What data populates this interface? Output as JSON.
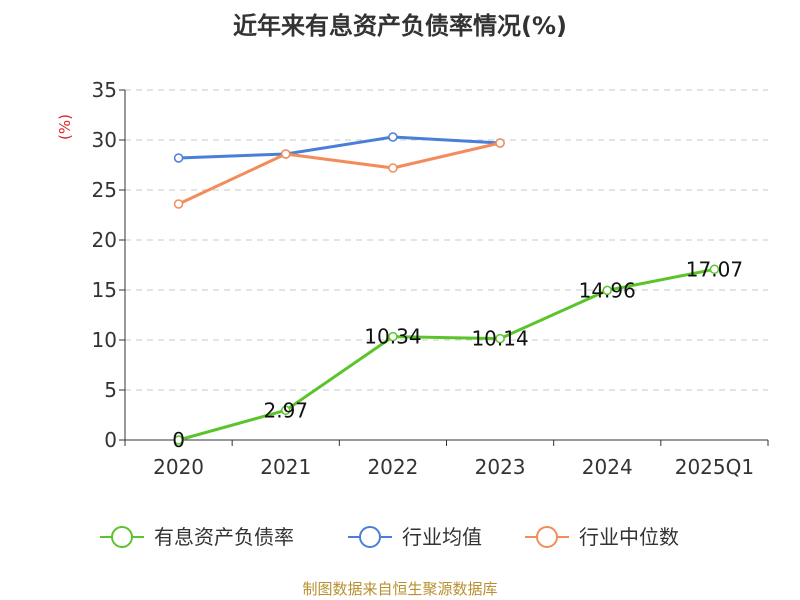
{
  "chart_data": {
    "type": "line",
    "title": "近年来有息资产负债率情况(%)",
    "ylabel": "(%)",
    "xlabel": "",
    "categories": [
      "2020",
      "2021",
      "2022",
      "2023",
      "2024",
      "2025Q1"
    ],
    "ylim": [
      0,
      35
    ],
    "yticks": [
      0,
      5,
      10,
      15,
      20,
      25,
      30,
      35
    ],
    "grid": true,
    "legend_position": "bottom",
    "series": [
      {
        "name": "有息资产负债率",
        "color": "#5cc42b",
        "values": [
          0,
          2.97,
          10.34,
          10.14,
          14.96,
          17.07
        ],
        "labels": [
          "0",
          "2.97",
          "10.34",
          "10.14",
          "14.96",
          "17.07"
        ]
      },
      {
        "name": "行业均值",
        "color": "#4a7fd9",
        "values": [
          28.2,
          28.6,
          30.3,
          29.7,
          null,
          null
        ]
      },
      {
        "name": "行业中位数",
        "color": "#f38c5a",
        "values": [
          23.6,
          28.6,
          27.2,
          29.7,
          null,
          null
        ]
      }
    ]
  },
  "source": "制图数据来自恒生聚源数据库"
}
